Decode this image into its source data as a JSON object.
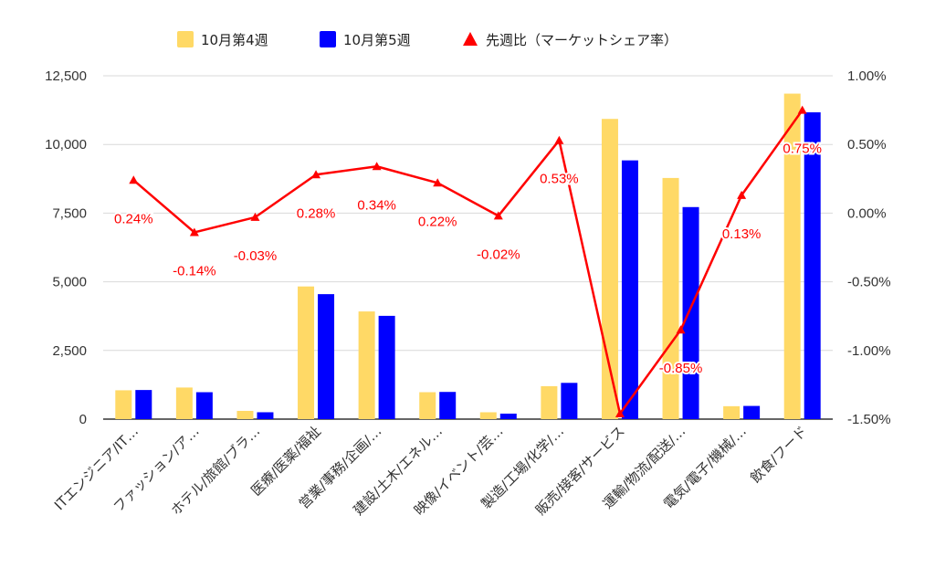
{
  "chart_data": {
    "type": "bar",
    "categories": [
      "ITエンジニア/IT…",
      "ファッション/ア…",
      "ホテル/旅館/ブラ…",
      "医療/医薬/福祉",
      "営業/事務/企画/…",
      "建設/土木/エネル…",
      "映像/イベント/芸…",
      "製造/工場/化学/…",
      "販売/接客/サービス",
      "運輸/物流/配送/…",
      "電気/電子/機械/…",
      "飲食/フード"
    ],
    "series": [
      {
        "name": "10月第4週",
        "type": "bar",
        "axis": "left",
        "color": "#ffd966",
        "values": [
          1050,
          1150,
          300,
          4830,
          3920,
          980,
          250,
          1200,
          10930,
          8780,
          470,
          11850
        ]
      },
      {
        "name": "10月第5週",
        "type": "bar",
        "axis": "left",
        "color": "#0000ff",
        "values": [
          1060,
          980,
          250,
          4550,
          3760,
          990,
          200,
          1320,
          9420,
          7720,
          480,
          11170
        ]
      },
      {
        "name": "先週比（マーケットシェア率）",
        "type": "line",
        "axis": "right",
        "color": "#ff0000",
        "values": [
          0.24,
          -0.14,
          -0.03,
          0.28,
          0.34,
          0.22,
          -0.02,
          0.53,
          -1.46,
          -0.85,
          0.13,
          0.75
        ],
        "labels": [
          "0.24%",
          "-0.14%",
          "-0.03%",
          "0.28%",
          "0.34%",
          "0.22%",
          "-0.02%",
          "0.53%",
          "",
          "-0.85%",
          "0.13%",
          "0.75%"
        ]
      }
    ],
    "y_left": {
      "ylim": [
        0,
        12500
      ],
      "ticks": [
        "0",
        "2,500",
        "5,000",
        "7,500",
        "10,000",
        "12,500"
      ]
    },
    "y_right": {
      "ylim": [
        -1.5,
        1.0
      ],
      "ticks": [
        "-1.50%",
        "-1.00%",
        "-0.50%",
        "0.00%",
        "0.50%",
        "1.00%"
      ]
    },
    "grid": true,
    "legend_position": "top-center"
  }
}
